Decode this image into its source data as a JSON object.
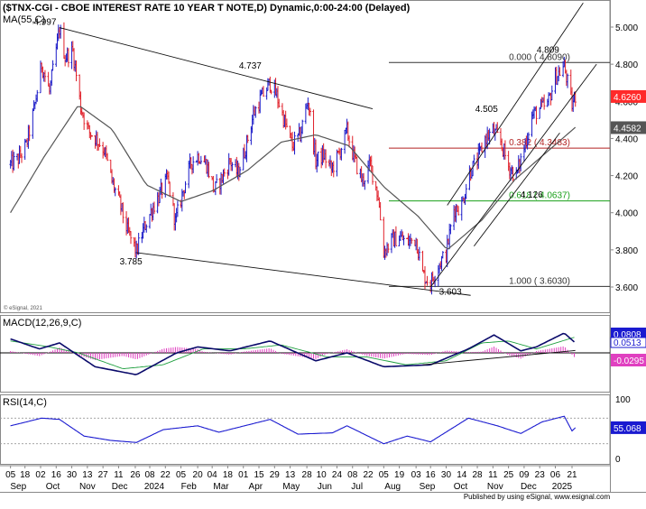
{
  "chart_title": "($TNX-CGI - CBOE INTEREST RATE 10 YEAR T NOTE,D) Dynamic,0:00-24:00 (Delayed)",
  "ma_label": "MA(55,C)",
  "copyright_text": "© eSignal, 2021",
  "footer_text": "Published by using eSignal, www.esignal.com",
  "colors": {
    "price_bar_up": "#1a1ac8",
    "price_bar_down": "#e0202a",
    "ma_line": "#555555",
    "trendline": "#111111",
    "fib_0": "#333333",
    "fib_382": "#b22222",
    "fib_618": "#1aa01a",
    "fib_1000": "#333333",
    "macd_line": "#0a0a6a",
    "macd_signal": "#20a040",
    "macd_hist": "#e040c0",
    "rsi_line": "#1a1ad0",
    "current_price_box": "#ff2a2a",
    "ma_value_box": "#555555",
    "macd_value_box": "#1a1ad0",
    "macd_hist_value_box": "#e040c0",
    "rsi_value_box": "#1a1ad0"
  },
  "chart_data": [
    {
      "type": "candlestick",
      "panel": "price",
      "series_name": "$TNX-CGI",
      "ylim": [
        3.55,
        5.08
      ],
      "y_ticks": [
        "5.000",
        "4.800",
        "4.600",
        "4.400",
        "4.200",
        "4.000",
        "3.800",
        "3.600"
      ],
      "current_value": "4.6260",
      "ma_value": "4.4582",
      "annotations": [
        {
          "text": "4.997",
          "date": "2023-10-19",
          "value": 4.997
        },
        {
          "text": "4.737",
          "date": "2024-04-25",
          "value": 4.737
        },
        {
          "text": "3.785",
          "date": "2023-12-27",
          "value": 3.785
        },
        {
          "text": "3.603",
          "date": "2024-09-16",
          "value": 3.603
        },
        {
          "text": "4.505",
          "date": "2024-11-15",
          "value": 4.505
        },
        {
          "text": "4.126",
          "date": "2024-12-06",
          "value": 4.126
        },
        {
          "text": "4.809",
          "date": "2025-01-14",
          "value": 4.809
        }
      ],
      "fib_levels": [
        {
          "label": "0.000 ( 4.8090)",
          "value": 4.809
        },
        {
          "label": "0.382 ( 4.3483)",
          "value": 4.3483
        },
        {
          "label": "0.618 ( 4.0637)",
          "value": 4.0637
        },
        {
          "label": "1.000 ( 3.6030)",
          "value": 3.603
        }
      ],
      "trendlines": [
        {
          "name": "upper-falling",
          "from": {
            "date": "2023-10-19",
            "value": 4.997
          },
          "to": {
            "date": "2024-07-26",
            "value": 4.56
          }
        },
        {
          "name": "lower-falling",
          "from": {
            "date": "2023-12-27",
            "value": 3.785
          },
          "to": {
            "date": "2024-10-22",
            "value": 3.555
          }
        },
        {
          "name": "channel-upper",
          "from": {
            "date": "2024-10-01",
            "value": 4.04
          },
          "to": {
            "date": "2025-01-31",
            "value": 5.13
          }
        },
        {
          "name": "channel-mid",
          "from": {
            "date": "2024-09-16",
            "value": 3.6
          },
          "to": {
            "date": "2025-02-12",
            "value": 4.8
          }
        },
        {
          "name": "channel-lower",
          "from": {
            "date": "2024-10-25",
            "value": 3.82
          },
          "to": {
            "date": "2025-01-10",
            "value": 4.43
          }
        }
      ],
      "closes": [
        {
          "date": "2023-09-05",
          "close": 4.26
        },
        {
          "date": "2023-09-12",
          "close": 4.29
        },
        {
          "date": "2023-09-19",
          "close": 4.36
        },
        {
          "date": "2023-09-26",
          "close": 4.55
        },
        {
          "date": "2023-10-03",
          "close": 4.8
        },
        {
          "date": "2023-10-10",
          "close": 4.65
        },
        {
          "date": "2023-10-19",
          "close": 4.99
        },
        {
          "date": "2023-10-24",
          "close": 4.84
        },
        {
          "date": "2023-10-31",
          "close": 4.87
        },
        {
          "date": "2023-11-07",
          "close": 4.57
        },
        {
          "date": "2023-11-14",
          "close": 4.44
        },
        {
          "date": "2023-11-21",
          "close": 4.4
        },
        {
          "date": "2023-11-28",
          "close": 4.34
        },
        {
          "date": "2023-12-05",
          "close": 4.17
        },
        {
          "date": "2023-12-12",
          "close": 4.05
        },
        {
          "date": "2023-12-19",
          "close": 3.9
        },
        {
          "date": "2023-12-27",
          "close": 3.79
        },
        {
          "date": "2024-01-03",
          "close": 3.92
        },
        {
          "date": "2024-01-10",
          "close": 4.02
        },
        {
          "date": "2024-01-17",
          "close": 4.1
        },
        {
          "date": "2024-01-24",
          "close": 4.18
        },
        {
          "date": "2024-01-31",
          "close": 3.95
        },
        {
          "date": "2024-02-07",
          "close": 4.12
        },
        {
          "date": "2024-02-14",
          "close": 4.27
        },
        {
          "date": "2024-02-21",
          "close": 4.31
        },
        {
          "date": "2024-02-28",
          "close": 4.26
        },
        {
          "date": "2024-03-06",
          "close": 4.12
        },
        {
          "date": "2024-03-13",
          "close": 4.19
        },
        {
          "date": "2024-03-20",
          "close": 4.28
        },
        {
          "date": "2024-03-27",
          "close": 4.21
        },
        {
          "date": "2024-04-03",
          "close": 4.35
        },
        {
          "date": "2024-04-10",
          "close": 4.53
        },
        {
          "date": "2024-04-17",
          "close": 4.62
        },
        {
          "date": "2024-04-25",
          "close": 4.7
        },
        {
          "date": "2024-05-01",
          "close": 4.63
        },
        {
          "date": "2024-05-08",
          "close": 4.49
        },
        {
          "date": "2024-05-15",
          "close": 4.36
        },
        {
          "date": "2024-05-22",
          "close": 4.42
        },
        {
          "date": "2024-05-29",
          "close": 4.61
        },
        {
          "date": "2024-06-05",
          "close": 4.28
        },
        {
          "date": "2024-06-12",
          "close": 4.31
        },
        {
          "date": "2024-06-19",
          "close": 4.23
        },
        {
          "date": "2024-06-26",
          "close": 4.32
        },
        {
          "date": "2024-07-03",
          "close": 4.44
        },
        {
          "date": "2024-07-10",
          "close": 4.28
        },
        {
          "date": "2024-07-17",
          "close": 4.17
        },
        {
          "date": "2024-07-24",
          "close": 4.26
        },
        {
          "date": "2024-07-31",
          "close": 4.09
        },
        {
          "date": "2024-08-05",
          "close": 3.79
        },
        {
          "date": "2024-08-12",
          "close": 3.85
        },
        {
          "date": "2024-08-19",
          "close": 3.87
        },
        {
          "date": "2024-08-26",
          "close": 3.84
        },
        {
          "date": "2024-09-03",
          "close": 3.86
        },
        {
          "date": "2024-09-09",
          "close": 3.67
        },
        {
          "date": "2024-09-16",
          "close": 3.62
        },
        {
          "date": "2024-09-23",
          "close": 3.72
        },
        {
          "date": "2024-09-30",
          "close": 3.78
        },
        {
          "date": "2024-10-07",
          "close": 4.02
        },
        {
          "date": "2024-10-14",
          "close": 4.04
        },
        {
          "date": "2024-10-21",
          "close": 4.22
        },
        {
          "date": "2024-10-28",
          "close": 4.28
        },
        {
          "date": "2024-11-04",
          "close": 4.4
        },
        {
          "date": "2024-11-11",
          "close": 4.44
        },
        {
          "date": "2024-11-18",
          "close": 4.38
        },
        {
          "date": "2024-11-25",
          "close": 4.25
        },
        {
          "date": "2024-12-02",
          "close": 4.2
        },
        {
          "date": "2024-12-09",
          "close": 4.35
        },
        {
          "date": "2024-12-16",
          "close": 4.52
        },
        {
          "date": "2024-12-23",
          "close": 4.56
        },
        {
          "date": "2024-12-30",
          "close": 4.58
        },
        {
          "date": "2025-01-06",
          "close": 4.73
        },
        {
          "date": "2025-01-14",
          "close": 4.79
        },
        {
          "date": "2025-01-21",
          "close": 4.58
        },
        {
          "date": "2025-01-24",
          "close": 4.63
        }
      ],
      "ma_55": [
        {
          "date": "2023-09-05",
          "value": 4.0
        },
        {
          "date": "2023-10-05",
          "value": 4.3
        },
        {
          "date": "2023-11-05",
          "value": 4.58
        },
        {
          "date": "2023-12-05",
          "value": 4.45
        },
        {
          "date": "2024-01-05",
          "value": 4.15
        },
        {
          "date": "2024-02-05",
          "value": 4.06
        },
        {
          "date": "2024-03-05",
          "value": 4.12
        },
        {
          "date": "2024-04-05",
          "value": 4.23
        },
        {
          "date": "2024-05-05",
          "value": 4.38
        },
        {
          "date": "2024-06-05",
          "value": 4.42
        },
        {
          "date": "2024-07-05",
          "value": 4.36
        },
        {
          "date": "2024-08-05",
          "value": 4.14
        },
        {
          "date": "2024-09-05",
          "value": 3.98
        },
        {
          "date": "2024-10-01",
          "value": 3.8
        },
        {
          "date": "2024-11-01",
          "value": 3.96
        },
        {
          "date": "2024-12-01",
          "value": 4.18
        },
        {
          "date": "2025-01-24",
          "value": 4.46
        }
      ]
    },
    {
      "type": "line",
      "panel": "macd",
      "label": "MACD(12,26,9,C)",
      "ylim": [
        -0.12,
        0.12
      ],
      "values": [
        "0.0808",
        "0.0513",
        "-0.0295"
      ],
      "macd": [
        {
          "date": "2023-09-05",
          "value": 0.07
        },
        {
          "date": "2023-10-01",
          "value": 0.02
        },
        {
          "date": "2023-10-19",
          "value": 0.05
        },
        {
          "date": "2023-11-20",
          "value": -0.07
        },
        {
          "date": "2023-12-27",
          "value": -0.11
        },
        {
          "date": "2024-02-01",
          "value": 0.0
        },
        {
          "date": "2024-02-20",
          "value": 0.03
        },
        {
          "date": "2024-03-20",
          "value": 0.01
        },
        {
          "date": "2024-04-25",
          "value": 0.06
        },
        {
          "date": "2024-06-05",
          "value": -0.04
        },
        {
          "date": "2024-07-03",
          "value": 0.0
        },
        {
          "date": "2024-08-05",
          "value": -0.07
        },
        {
          "date": "2024-09-16",
          "value": -0.06
        },
        {
          "date": "2024-10-20",
          "value": 0.02
        },
        {
          "date": "2024-11-12",
          "value": 0.09
        },
        {
          "date": "2024-12-06",
          "value": 0.01
        },
        {
          "date": "2024-12-20",
          "value": 0.03
        },
        {
          "date": "2025-01-14",
          "value": 0.1
        },
        {
          "date": "2025-01-24",
          "value": 0.05
        }
      ],
      "signal": [
        {
          "date": "2023-09-05",
          "value": 0.06
        },
        {
          "date": "2023-10-10",
          "value": 0.03
        },
        {
          "date": "2023-11-05",
          "value": 0.0
        },
        {
          "date": "2023-12-15",
          "value": -0.08
        },
        {
          "date": "2024-01-20",
          "value": -0.06
        },
        {
          "date": "2024-02-25",
          "value": 0.02
        },
        {
          "date": "2024-04-01",
          "value": 0.02
        },
        {
          "date": "2024-05-05",
          "value": 0.04
        },
        {
          "date": "2024-06-15",
          "value": -0.02
        },
        {
          "date": "2024-07-20",
          "value": -0.02
        },
        {
          "date": "2024-08-25",
          "value": -0.06
        },
        {
          "date": "2024-09-30",
          "value": -0.04
        },
        {
          "date": "2024-11-01",
          "value": 0.05
        },
        {
          "date": "2024-11-25",
          "value": 0.06
        },
        {
          "date": "2024-12-20",
          "value": 0.02
        },
        {
          "date": "2025-01-24",
          "value": 0.08
        }
      ],
      "trendline": {
        "from": {
          "date": "2024-09-09",
          "value": -0.06
        },
        "to": {
          "date": "2025-01-24",
          "value": 0.012
        }
      }
    },
    {
      "type": "line",
      "panel": "rsi",
      "label": "RSI(14,C)",
      "ylim": [
        0,
        100
      ],
      "y_ticks": [
        "100",
        "0"
      ],
      "reference_levels": [
        70,
        30
      ],
      "value": "55.068",
      "rsi": [
        {
          "date": "2023-09-05",
          "value": 58
        },
        {
          "date": "2023-10-03",
          "value": 70
        },
        {
          "date": "2023-10-19",
          "value": 68
        },
        {
          "date": "2023-11-10",
          "value": 42
        },
        {
          "date": "2023-12-05",
          "value": 35
        },
        {
          "date": "2023-12-27",
          "value": 32
        },
        {
          "date": "2024-01-20",
          "value": 52
        },
        {
          "date": "2024-02-20",
          "value": 58
        },
        {
          "date": "2024-03-10",
          "value": 48
        },
        {
          "date": "2024-04-25",
          "value": 68
        },
        {
          "date": "2024-05-20",
          "value": 45
        },
        {
          "date": "2024-06-20",
          "value": 47
        },
        {
          "date": "2024-07-03",
          "value": 58
        },
        {
          "date": "2024-08-05",
          "value": 30
        },
        {
          "date": "2024-08-26",
          "value": 42
        },
        {
          "date": "2024-09-16",
          "value": 33
        },
        {
          "date": "2024-10-20",
          "value": 70
        },
        {
          "date": "2024-11-15",
          "value": 58
        },
        {
          "date": "2024-12-06",
          "value": 46
        },
        {
          "date": "2024-12-25",
          "value": 64
        },
        {
          "date": "2025-01-14",
          "value": 73
        },
        {
          "date": "2025-01-21",
          "value": 50
        },
        {
          "date": "2025-01-24",
          "value": 55
        }
      ]
    }
  ],
  "x_axis": {
    "day_labels": [
      {
        "text": "05",
        "date": "2023-09-05"
      },
      {
        "text": "18",
        "date": "2023-09-18"
      },
      {
        "text": "02",
        "date": "2023-10-02"
      },
      {
        "text": "16",
        "date": "2023-10-16"
      },
      {
        "text": "30",
        "date": "2023-10-30"
      },
      {
        "text": "13",
        "date": "2023-11-13"
      },
      {
        "text": "27",
        "date": "2023-11-27"
      },
      {
        "text": "11",
        "date": "2023-12-11"
      },
      {
        "text": "26",
        "date": "2023-12-26"
      },
      {
        "text": "08",
        "date": "2024-01-08"
      },
      {
        "text": "22",
        "date": "2024-01-22"
      },
      {
        "text": "05",
        "date": "2024-02-05"
      },
      {
        "text": "20",
        "date": "2024-02-20"
      },
      {
        "text": "04",
        "date": "2024-03-04"
      },
      {
        "text": "18",
        "date": "2024-03-18"
      },
      {
        "text": "01",
        "date": "2024-04-01"
      },
      {
        "text": "15",
        "date": "2024-04-15"
      },
      {
        "text": "29",
        "date": "2024-04-29"
      },
      {
        "text": "13",
        "date": "2024-05-13"
      },
      {
        "text": "28",
        "date": "2024-05-28"
      },
      {
        "text": "10",
        "date": "2024-06-10"
      },
      {
        "text": "24",
        "date": "2024-06-24"
      },
      {
        "text": "08",
        "date": "2024-07-08"
      },
      {
        "text": "22",
        "date": "2024-07-22"
      },
      {
        "text": "05",
        "date": "2024-08-05"
      },
      {
        "text": "19",
        "date": "2024-08-19"
      },
      {
        "text": "03",
        "date": "2024-09-03"
      },
      {
        "text": "16",
        "date": "2024-09-16"
      },
      {
        "text": "30",
        "date": "2024-09-30"
      },
      {
        "text": "14",
        "date": "2024-10-14"
      },
      {
        "text": "28",
        "date": "2024-10-28"
      },
      {
        "text": "11",
        "date": "2024-11-11"
      },
      {
        "text": "25",
        "date": "2024-11-25"
      },
      {
        "text": "09",
        "date": "2024-12-09"
      },
      {
        "text": "23",
        "date": "2024-12-23"
      },
      {
        "text": "06",
        "date": "2025-01-06"
      },
      {
        "text": "21",
        "date": "2025-01-21"
      }
    ],
    "month_labels": [
      {
        "text": "Sep",
        "date": "2023-09-12"
      },
      {
        "text": "Oct",
        "date": "2023-10-13"
      },
      {
        "text": "Nov",
        "date": "2023-11-13"
      },
      {
        "text": "Dec",
        "date": "2023-12-12"
      },
      {
        "text": "2024",
        "date": "2024-01-12"
      },
      {
        "text": "Feb",
        "date": "2024-02-12"
      },
      {
        "text": "Mar",
        "date": "2024-03-12"
      },
      {
        "text": "Apr",
        "date": "2024-04-12"
      },
      {
        "text": "May",
        "date": "2024-05-14"
      },
      {
        "text": "Jun",
        "date": "2024-06-13"
      },
      {
        "text": "Jul",
        "date": "2024-07-12"
      },
      {
        "text": "Aug",
        "date": "2024-08-13"
      },
      {
        "text": "Sep",
        "date": "2024-09-13"
      },
      {
        "text": "Oct",
        "date": "2024-10-13"
      },
      {
        "text": "Nov",
        "date": "2024-11-13"
      },
      {
        "text": "Dec",
        "date": "2024-12-13"
      },
      {
        "text": "2025",
        "date": "2025-01-12"
      }
    ]
  }
}
